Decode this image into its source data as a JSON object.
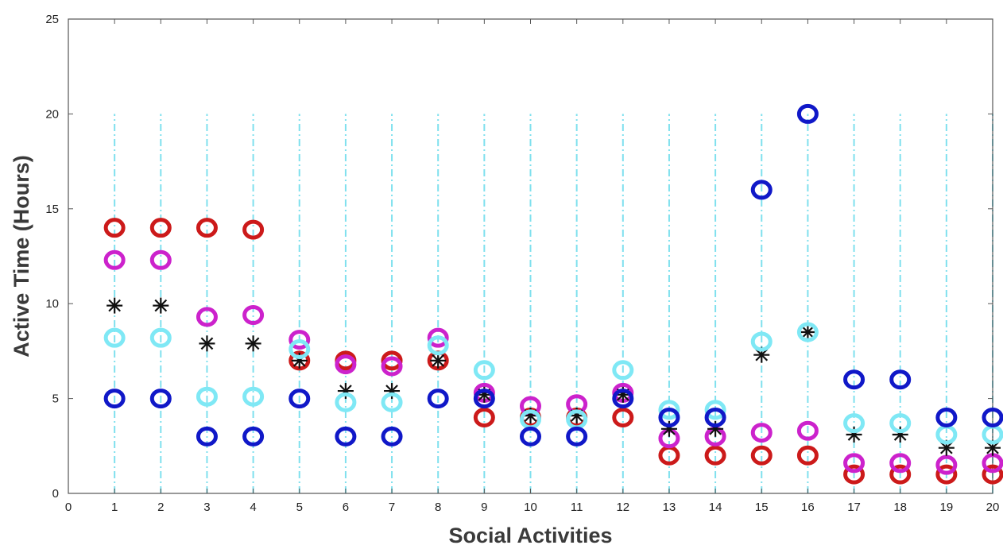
{
  "chart_data": {
    "type": "scatter",
    "xlabel": "Social Activities",
    "ylabel": "Active Time (Hours)",
    "xlim": [
      0,
      20
    ],
    "ylim": [
      0,
      25
    ],
    "xticks": [
      0,
      1,
      2,
      3,
      4,
      5,
      6,
      7,
      8,
      9,
      10,
      11,
      12,
      13,
      14,
      15,
      16,
      17,
      18,
      19,
      20
    ],
    "yticks": [
      0,
      5,
      10,
      15,
      20,
      25
    ],
    "grid": "vertical dash-dot lines at each activity",
    "series": [
      {
        "color": "#cc1a1a",
        "marker": "circle",
        "x": [
          1,
          2,
          3,
          4,
          5,
          6,
          7,
          8,
          9,
          10,
          11,
          12,
          13,
          14,
          15,
          16,
          17,
          18,
          19,
          20
        ],
        "y": [
          14,
          14,
          14,
          13.9,
          7,
          7,
          7,
          7,
          4,
          4,
          4,
          4,
          2,
          2,
          2,
          2,
          1,
          1,
          1,
          1
        ]
      },
      {
        "color": "#cc22cc",
        "marker": "circle",
        "x": [
          1,
          2,
          3,
          4,
          5,
          6,
          7,
          8,
          9,
          10,
          11,
          12,
          13,
          14,
          15,
          16,
          17,
          18,
          19,
          20
        ],
        "y": [
          12.3,
          12.3,
          9.3,
          9.4,
          8.1,
          6.8,
          6.7,
          8.2,
          5.3,
          4.6,
          4.7,
          5.3,
          2.9,
          3,
          3.2,
          3.3,
          1.6,
          1.6,
          1.5,
          1.6
        ]
      },
      {
        "color": "#111111",
        "marker": "star",
        "x": [
          1,
          2,
          3,
          4,
          5,
          6,
          7,
          8,
          9,
          10,
          11,
          12,
          13,
          14,
          15,
          16,
          17,
          18,
          19,
          20
        ],
        "y": [
          9.9,
          9.9,
          7.9,
          7.9,
          7,
          5.4,
          5.4,
          7,
          5.2,
          4.1,
          4.1,
          5.2,
          3.4,
          3.4,
          7.3,
          8.5,
          3.1,
          3.1,
          2.4,
          2.4
        ]
      },
      {
        "color": "#7fe8f5",
        "marker": "circle",
        "x": [
          1,
          2,
          3,
          4,
          5,
          6,
          7,
          8,
          9,
          10,
          11,
          12,
          13,
          14,
          15,
          16,
          17,
          18,
          19,
          20
        ],
        "y": [
          8.2,
          8.2,
          5.1,
          5.1,
          7.6,
          4.8,
          4.8,
          7.8,
          6.5,
          3.9,
          3.9,
          6.5,
          4.4,
          4.4,
          8,
          8.5,
          3.7,
          3.7,
          3.1,
          3.1
        ]
      },
      {
        "color": "#1018c8",
        "marker": "circle",
        "x": [
          1,
          2,
          3,
          4,
          5,
          6,
          7,
          8,
          9,
          10,
          11,
          12,
          13,
          14,
          15,
          16,
          17,
          18,
          19,
          20
        ],
        "y": [
          5,
          5,
          3,
          3,
          5,
          3,
          3,
          5,
          5,
          3,
          3,
          5,
          4,
          4,
          16,
          20,
          6,
          6,
          4,
          4
        ]
      }
    ]
  }
}
